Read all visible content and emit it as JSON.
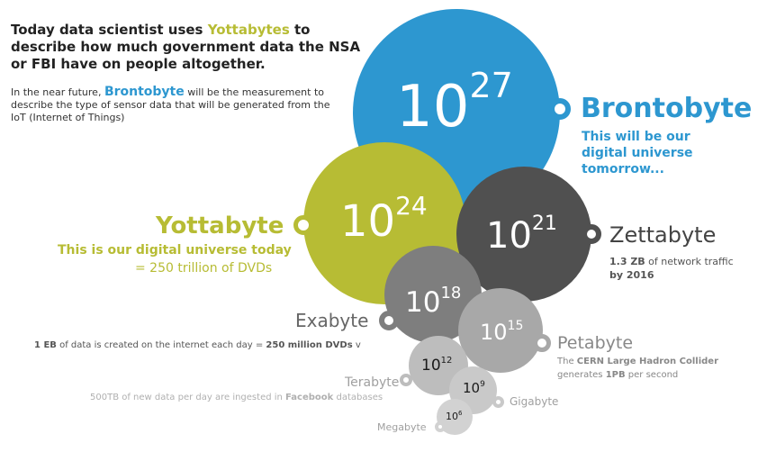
{
  "intro": {
    "headline_pre": "Today data scientist uses ",
    "headline_highlight": "Yottabytes",
    "headline_post": " to describe how much government data the NSA or FBI have on people altogether.",
    "sub_pre": "In the near future, ",
    "sub_highlight": "Brontobyte",
    "sub_post": " will be the measurement to describe the type of sensor data that will be generated from the IoT (Internet of Things)"
  },
  "units": [
    {
      "id": "brontobyte",
      "base": "10",
      "exponent": "27",
      "name": "Brontobyte",
      "desc": "This will be our digital universe tomorrow...",
      "color": "#2d97d0"
    },
    {
      "id": "yottabyte",
      "base": "10",
      "exponent": "24",
      "name": "Yottabyte",
      "desc": "This is our digital universe today",
      "desc2": "= 250 trillion of DVDs",
      "color": "#b7bc34"
    },
    {
      "id": "zettabyte",
      "base": "10",
      "exponent": "21",
      "name": "Zettabyte",
      "desc_bold": "1.3 ZB",
      "desc": " of network traffic",
      "desc2": "by 2016",
      "color": "#505050"
    },
    {
      "id": "exabyte",
      "base": "10",
      "exponent": "18",
      "name": "Exabyte",
      "desc_bold": "1 EB",
      "desc": " of data is created on the internet each day = ",
      "desc_bold2": "250 million DVDs",
      "desc_tail": " v",
      "color": "#7e7e7e"
    },
    {
      "id": "petabyte",
      "base": "10",
      "exponent": "15",
      "name": "Petabyte",
      "desc_pre": "The ",
      "desc_bold": "CERN Large Hadron Collider",
      "desc2_pre": "generates ",
      "desc2_bold": "1PB",
      "desc2_post": " per second",
      "color": "#a8a8a8"
    },
    {
      "id": "terabyte",
      "base": "10",
      "exponent": "12",
      "name": "Terabyte",
      "desc": "500TB of new data per day are ingested in ",
      "desc_bold": "Facebook",
      "desc_post": " databases",
      "color": "#bdbdbd"
    },
    {
      "id": "gigabyte",
      "base": "10",
      "exponent": "9",
      "name": "Gigabyte",
      "color": "#c9c9c9"
    },
    {
      "id": "megabyte",
      "base": "10",
      "exponent": "6",
      "name": "Megabyte",
      "color": "#d2d2d2"
    }
  ]
}
